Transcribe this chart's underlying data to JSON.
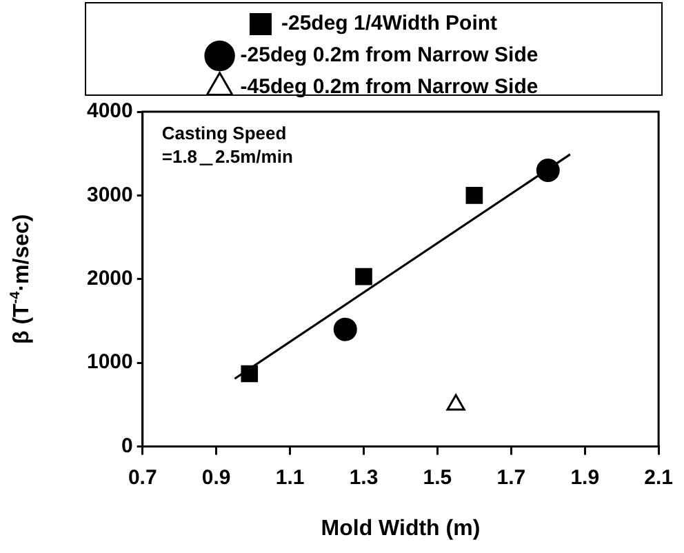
{
  "chart_data": {
    "type": "scatter",
    "xlabel": "Mold Width (m)",
    "ylabel": "β (T$^{-4}$·m/sec)",
    "xlim": [
      0.7,
      2.1
    ],
    "xticks": [
      0.7,
      0.9,
      1.1,
      1.3,
      1.5,
      1.7,
      1.9,
      2.1
    ],
    "ylim": [
      0,
      4000
    ],
    "yticks": [
      0,
      1000,
      2000,
      3000,
      4000
    ],
    "grid": false,
    "legend": "top",
    "annotations": [
      "Casting Speed",
      "=1.8＿2.5m/min"
    ],
    "series": [
      {
        "name": "-25deg 1/4Width Point",
        "color": "#000000",
        "marker": "square",
        "x": [
          0.99,
          1.3,
          1.6
        ],
        "values": [
          870,
          2030,
          3000
        ]
      },
      {
        "name": "-25deg 0.2m from Narrow Side",
        "color": "#000000",
        "marker": "circle",
        "x": [
          1.25,
          1.8
        ],
        "values": [
          1400,
          3300
        ]
      },
      {
        "name": "-45deg 0.2m from Narrow Side",
        "color": "#000000",
        "marker": "triangle",
        "x": [
          1.55
        ],
        "values": [
          500
        ]
      },
      {
        "type": "line",
        "color": "#000000",
        "marker": "none",
        "x": [
          0.95,
          1.86
        ],
        "values": [
          810,
          3490
        ]
      }
    ]
  }
}
